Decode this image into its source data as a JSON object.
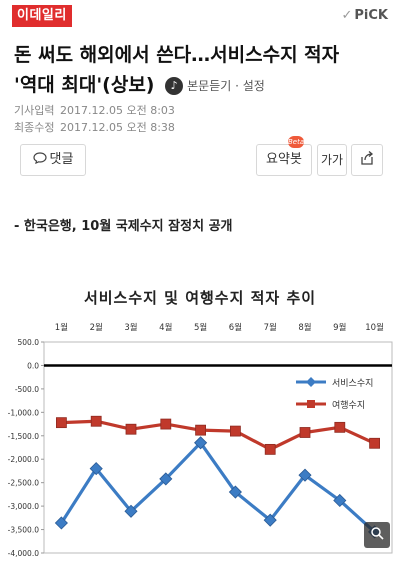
{
  "header": {
    "logo": "이데일리",
    "pick_check": "✓",
    "pick_label": "PiCK"
  },
  "article": {
    "headline_line1": "돈 써도 해외에서 쓴다…서비스수지 적자",
    "headline_line2": "'역대 최대'(상보)",
    "listen_label": "본문듣기 · 설정",
    "input_label": "기사입력",
    "input_time": "2017.12.05 오전 8:03",
    "edit_label": "최종수정",
    "edit_time": "2017.12.05 오전 8:38",
    "subheading": "- 한국은행, 10월 국제수지 잠정치 공개"
  },
  "actions": {
    "comment_label": "댓글",
    "summary_label": "요약봇",
    "summary_badge": "Beta",
    "font_label": "가가"
  },
  "icons": {
    "comment": "comment-bubble-icon",
    "share": "share-icon",
    "listen": "speaker-icon",
    "zoom": "magnify-icon"
  },
  "colors": {
    "brand": "#e02d2d",
    "series_service": "#3c7cc4",
    "series_travel": "#c0392b"
  },
  "chart_data": {
    "type": "line",
    "title": "서비스수지 및 여행수지 적자 추이",
    "categories": [
      "1월",
      "2월",
      "3월",
      "4월",
      "5월",
      "6월",
      "7월",
      "8월",
      "9월",
      "10월"
    ],
    "ylim": [
      -4000,
      500
    ],
    "y_ticks": [
      "500.0",
      "0.0",
      "-500.0",
      "-1,000.0",
      "-1,500.0",
      "-2,000.0",
      "-2,500.0",
      "-3,000.0",
      "-3,500.0",
      "-4,000.0"
    ],
    "y_tick_values": [
      500,
      0,
      -500,
      -1000,
      -1500,
      -2000,
      -2500,
      -3000,
      -3500,
      -4000
    ],
    "series": [
      {
        "name": "서비스수지",
        "color": "#3c7cc4",
        "marker": "diamond",
        "values": [
          -3360,
          -2200,
          -3110,
          -2420,
          -1650,
          -2700,
          -3300,
          -2340,
          -2880,
          -3550
        ]
      },
      {
        "name": "여행수지",
        "color": "#c0392b",
        "marker": "square",
        "values": [
          -1220,
          -1190,
          -1360,
          -1250,
          -1380,
          -1400,
          -1790,
          -1430,
          -1320,
          -1660
        ]
      }
    ],
    "legend_position": "right",
    "grid": false
  }
}
